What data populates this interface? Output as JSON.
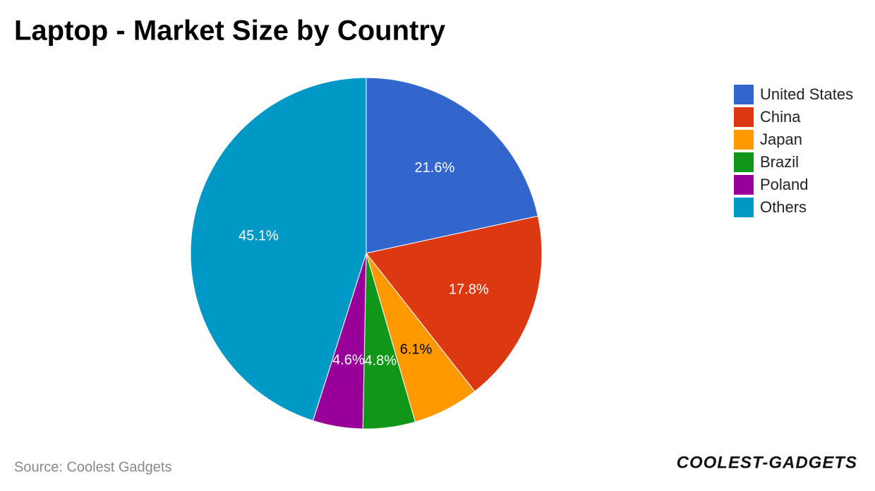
{
  "chart_data": {
    "type": "pie",
    "title": "Laptop - Market Size by Country",
    "categories": [
      "United States",
      "China",
      "Japan",
      "Brazil",
      "Poland",
      "Others"
    ],
    "values": [
      21.6,
      17.8,
      6.1,
      4.8,
      4.6,
      45.1
    ],
    "value_labels": [
      "21.6%",
      "17.8%",
      "6.1%",
      "4.8%",
      "4.6%",
      "45.1%"
    ],
    "colors": [
      "#3366cc",
      "#dc3912",
      "#ff9900",
      "#109618",
      "#990099",
      "#0099c6"
    ],
    "legend": "right",
    "source": "Source: Coolest Gadgets",
    "logo": "COOLEST-GADGETS"
  }
}
